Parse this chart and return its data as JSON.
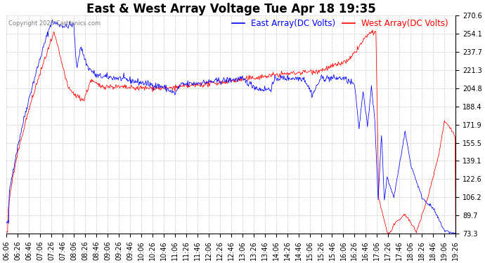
{
  "title": "East & West Array Voltage Tue Apr 18 19:35",
  "copyright": "Copyright 2023 Cartronics.com",
  "east_label": "East Array(DC Volts)",
  "west_label": "West Array(DC Volts)",
  "east_color": "blue",
  "west_color": "red",
  "background_color": "#ffffff",
  "grid_color": "#cccccc",
  "ylim_min": 73.3,
  "ylim_max": 270.6,
  "yticks": [
    73.3,
    89.7,
    106.2,
    122.6,
    139.1,
    155.5,
    171.9,
    188.4,
    204.8,
    221.3,
    237.7,
    254.1,
    270.6
  ],
  "x_start_hour": 6,
  "x_start_min": 6,
  "x_end_hour": 19,
  "x_end_min": 26,
  "x_interval_min": 20,
  "title_fontsize": 12,
  "tick_fontsize": 7,
  "legend_fontsize": 8.5
}
